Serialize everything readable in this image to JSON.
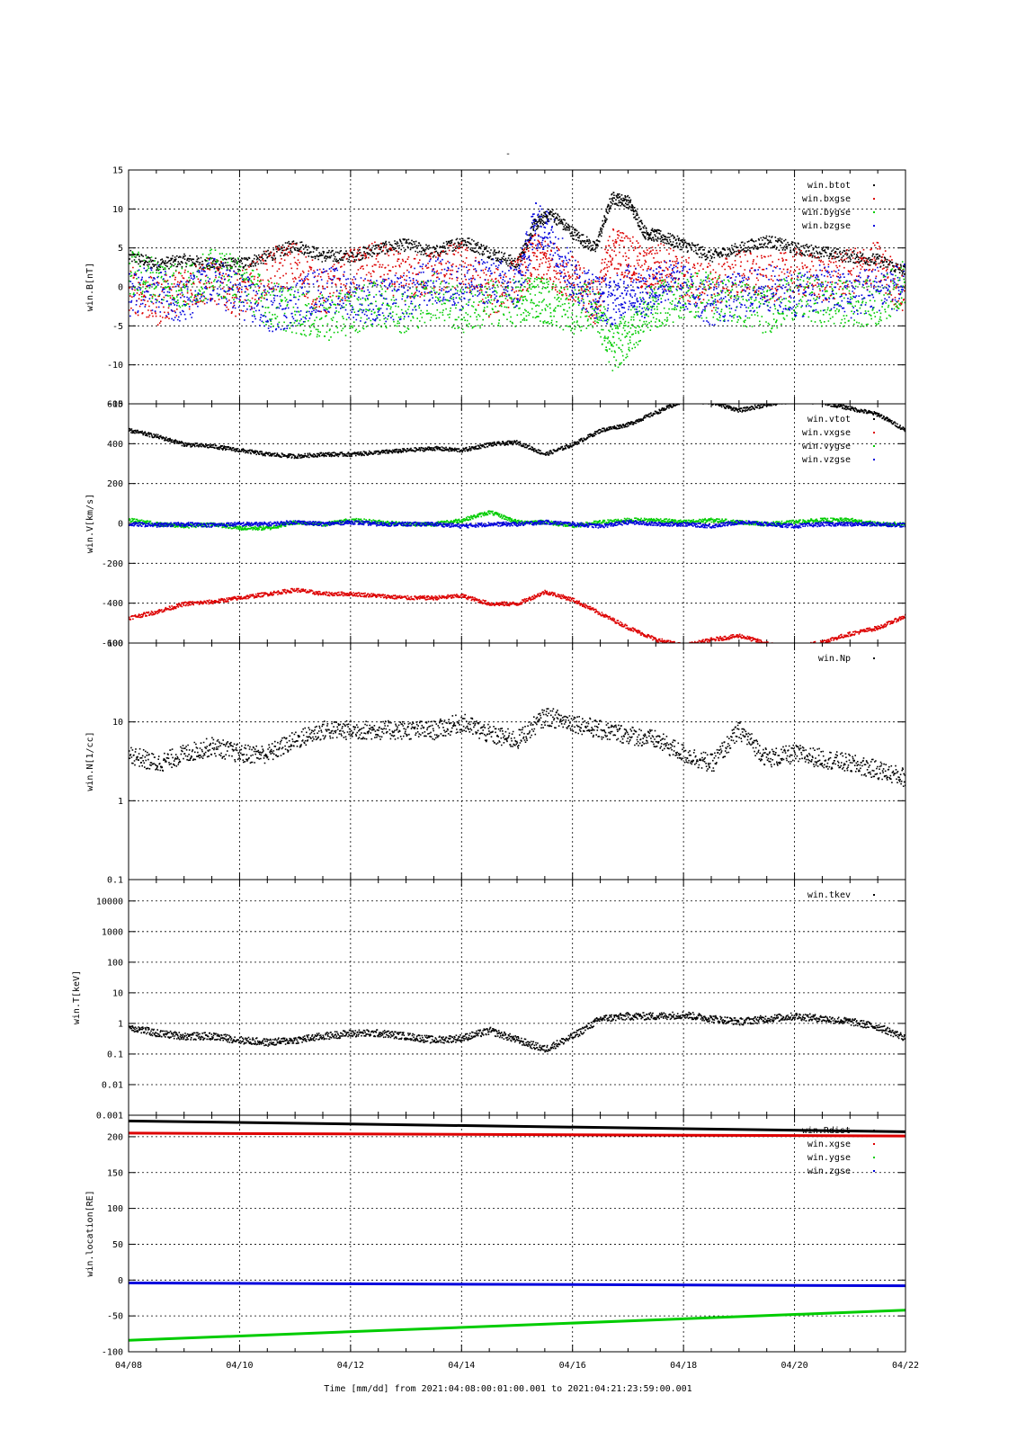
{
  "figure": {
    "title": "-",
    "xlabel": "Time [mm/dd]  from 2021:04:08:00:01:00.001  to  2021:04:21:23:59:00.001",
    "x_tick_labels": [
      "04/08",
      "04/10",
      "04/12",
      "04/14",
      "04/16",
      "04/18",
      "04/20",
      "04/22"
    ]
  },
  "colors": {
    "black": "#000000",
    "red": "#dd0000",
    "green": "#00cc00",
    "blue": "#0000dd"
  },
  "chart_data": [
    {
      "type": "scatter",
      "ylabel": "win.B[nT]",
      "ylim": [
        -15,
        15
      ],
      "yscale": "linear",
      "y_tick_labels": [
        "15",
        "10",
        "5",
        "0",
        "-5",
        "-10",
        "-15"
      ],
      "x_unit": "day of April 2021",
      "xlim": [
        8,
        22
      ],
      "grid": true,
      "legend_placement": "top-right",
      "series": [
        {
          "name": "win.btot",
          "color": "black",
          "x": [
            8,
            8.5,
            9,
            9.5,
            10,
            10.5,
            11,
            11.5,
            12,
            12.5,
            13,
            13.5,
            14,
            14.5,
            15,
            15.3,
            15.6,
            16,
            16.4,
            16.7,
            17,
            17.3,
            17.6,
            18,
            18.5,
            19,
            19.5,
            20,
            20.5,
            21,
            21.5,
            22
          ],
          "values": [
            4,
            3,
            3.5,
            3,
            3,
            4,
            5.5,
            4,
            4,
            5,
            5.5,
            4.5,
            6,
            4.5,
            3,
            8,
            9.5,
            7,
            5,
            11.5,
            11,
            7,
            6.5,
            5.5,
            4,
            5,
            6,
            5,
            4.5,
            4,
            3.5,
            2
          ]
        },
        {
          "name": "win.bxgse",
          "color": "red",
          "x": [
            8,
            8.5,
            9,
            9.5,
            10,
            10.5,
            11,
            11.5,
            12,
            12.5,
            13,
            13.5,
            14,
            14.5,
            15,
            15.3,
            15.6,
            16,
            16.4,
            16.7,
            17,
            17.3,
            17.6,
            18,
            18.5,
            19,
            19.5,
            20,
            20.5,
            21,
            21.5,
            22
          ],
          "values": [
            0,
            -2,
            0,
            1,
            -1,
            2,
            3,
            -1,
            2,
            3,
            1,
            2,
            3,
            -1,
            1,
            4,
            3,
            1,
            -2,
            5,
            4,
            2,
            3,
            1,
            0,
            2,
            1,
            2,
            1,
            2,
            3,
            -1
          ]
        },
        {
          "name": "win.bygse",
          "color": "green",
          "x": [
            8,
            8.5,
            9,
            9.5,
            10,
            10.5,
            11,
            11.5,
            12,
            12.5,
            13,
            13.5,
            14,
            14.5,
            15,
            15.3,
            15.6,
            16,
            16.4,
            16.7,
            17,
            17.3,
            17.6,
            18,
            18.5,
            19,
            19.5,
            20,
            20.5,
            21,
            21.5,
            22
          ],
          "values": [
            2,
            1,
            0,
            2,
            1,
            -2,
            -3,
            -4,
            -3,
            -2,
            -3,
            -1,
            -3,
            -2,
            -2,
            -1,
            -2,
            -3,
            -2,
            -8,
            -6,
            -3,
            -2,
            -1,
            -1,
            -2,
            -3,
            -1,
            -2,
            -2,
            -2,
            1
          ]
        },
        {
          "name": "win.bzgse",
          "color": "blue",
          "x": [
            8,
            8.5,
            9,
            9.5,
            10,
            10.5,
            11,
            11.5,
            12,
            12.5,
            13,
            13.5,
            14,
            14.5,
            15,
            15.3,
            15.6,
            16,
            16.4,
            16.7,
            17,
            17.3,
            17.6,
            18,
            18.5,
            19,
            19.5,
            20,
            20.5,
            21,
            21.5,
            22
          ],
          "values": [
            -1,
            0,
            -2,
            1,
            -1,
            -3,
            -2,
            0,
            -1,
            -2,
            -1,
            1,
            0,
            1,
            0,
            8,
            7,
            1,
            -1,
            -2,
            0,
            -1,
            1,
            0,
            -2,
            -1,
            0,
            -1,
            0,
            -1,
            0,
            0
          ]
        }
      ]
    },
    {
      "type": "scatter",
      "ylabel": "win.V[km/s]",
      "ylim": [
        -600,
        600
      ],
      "yscale": "linear",
      "y_tick_labels": [
        "600",
        "400",
        "200",
        "0",
        "-200",
        "-400",
        "-600"
      ],
      "x_unit": "day of April 2021",
      "xlim": [
        8,
        22
      ],
      "grid": true,
      "legend_placement": "top-right",
      "series": [
        {
          "name": "win.vtot",
          "color": "black",
          "x": [
            8,
            8.5,
            9,
            9.5,
            10,
            10.5,
            11,
            11.5,
            12,
            12.5,
            13,
            13.5,
            14,
            14.5,
            15,
            15.5,
            16,
            16.5,
            17,
            17.5,
            18,
            18.5,
            19,
            19.5,
            20,
            20.5,
            21,
            21.5,
            22
          ],
          "values": [
            470,
            440,
            400,
            390,
            370,
            350,
            340,
            350,
            350,
            360,
            370,
            380,
            370,
            400,
            410,
            350,
            400,
            470,
            500,
            560,
            620,
            610,
            570,
            600,
            620,
            610,
            580,
            550,
            470
          ]
        },
        {
          "name": "win.vxgse",
          "color": "red",
          "x": [
            8,
            8.5,
            9,
            9.5,
            10,
            10.5,
            11,
            11.5,
            12,
            12.5,
            13,
            13.5,
            14,
            14.5,
            15,
            15.5,
            16,
            16.5,
            17,
            17.5,
            18,
            18.5,
            19,
            19.5,
            20,
            20.5,
            21,
            21.5,
            22
          ],
          "values": [
            -470,
            -440,
            -400,
            -390,
            -370,
            -350,
            -330,
            -350,
            -350,
            -360,
            -370,
            -370,
            -360,
            -400,
            -400,
            -340,
            -380,
            -450,
            -520,
            -580,
            -610,
            -580,
            -560,
            -600,
            -620,
            -590,
            -550,
            -520,
            -460
          ]
        },
        {
          "name": "win.vygse",
          "color": "green",
          "x": [
            8,
            8.5,
            9,
            9.5,
            10,
            10.5,
            11,
            11.5,
            12,
            12.5,
            13,
            13.5,
            14,
            14.5,
            15,
            15.5,
            16,
            16.5,
            17,
            17.5,
            18,
            18.5,
            19,
            19.5,
            20,
            20.5,
            21,
            21.5,
            22
          ],
          "values": [
            20,
            0,
            -10,
            0,
            -20,
            -20,
            10,
            0,
            20,
            10,
            0,
            0,
            20,
            60,
            10,
            10,
            -10,
            10,
            20,
            20,
            10,
            20,
            10,
            0,
            10,
            20,
            20,
            0,
            0
          ]
        },
        {
          "name": "win.vzgse",
          "color": "blue",
          "x": [
            8,
            8.5,
            9,
            9.5,
            10,
            10.5,
            11,
            11.5,
            12,
            12.5,
            13,
            13.5,
            14,
            14.5,
            15,
            15.5,
            16,
            16.5,
            17,
            17.5,
            18,
            18.5,
            19,
            19.5,
            20,
            20.5,
            21,
            21.5,
            22
          ],
          "values": [
            0,
            -5,
            0,
            -5,
            0,
            0,
            10,
            0,
            10,
            0,
            0,
            0,
            -10,
            0,
            0,
            10,
            0,
            -10,
            10,
            0,
            0,
            -10,
            10,
            0,
            -10,
            0,
            0,
            0,
            -5
          ]
        }
      ]
    },
    {
      "type": "scatter",
      "ylabel": "win.N[1/cc]",
      "ylim": [
        0.1,
        100
      ],
      "yscale": "log",
      "y_tick_labels": [
        "100",
        "10",
        "1",
        "0.1"
      ],
      "x_unit": "day of April 2021",
      "xlim": [
        8,
        22
      ],
      "grid": true,
      "legend_placement": "top-right",
      "series": [
        {
          "name": "win.Np",
          "color": "black",
          "x": [
            8,
            8.5,
            9,
            9.5,
            10,
            10.5,
            11,
            11.5,
            12,
            12.5,
            13,
            13.5,
            14,
            14.5,
            15,
            15.5,
            16,
            16.5,
            17,
            17.5,
            18,
            18.5,
            19,
            19.5,
            20,
            20.5,
            21,
            21.5,
            22
          ],
          "values": [
            4,
            3,
            4,
            5,
            4,
            4,
            6,
            8,
            8,
            8,
            8,
            8,
            10,
            7,
            6,
            12,
            10,
            8,
            7,
            6,
            4,
            3,
            8,
            3.5,
            4,
            3.5,
            3,
            2.5,
            2
          ]
        }
      ]
    },
    {
      "type": "scatter",
      "ylabel": "win.T[keV]",
      "ylim": [
        0.001,
        50000
      ],
      "yscale": "log",
      "y_tick_labels": [
        "10000",
        "1000",
        "100",
        "10",
        "1",
        "0.1",
        "0.01",
        "0.001"
      ],
      "x_unit": "day of April 2021",
      "xlim": [
        8,
        22
      ],
      "grid": true,
      "legend_placement": "top-right",
      "series": [
        {
          "name": "win.tkev",
          "color": "black",
          "x": [
            8,
            8.5,
            9,
            9.5,
            10,
            10.5,
            11,
            11.5,
            12,
            12.5,
            13,
            13.5,
            14,
            14.5,
            15,
            15.5,
            16,
            16.5,
            17,
            17.5,
            18,
            18.5,
            19,
            19.5,
            20,
            20.5,
            21,
            21.5,
            22
          ],
          "values": [
            0.8,
            0.5,
            0.4,
            0.4,
            0.3,
            0.25,
            0.3,
            0.4,
            0.5,
            0.5,
            0.4,
            0.3,
            0.35,
            0.6,
            0.3,
            0.15,
            0.4,
            1.5,
            1.8,
            1.8,
            2,
            1.5,
            1.2,
            1.5,
            1.8,
            1.5,
            1.2,
            0.8,
            0.35
          ]
        }
      ]
    },
    {
      "type": "line",
      "ylabel": "win.location[RE]",
      "ylim": [
        -100,
        230
      ],
      "yscale": "linear",
      "y_tick_labels": [
        "200",
        "150",
        "100",
        "50",
        "0",
        "-50",
        "-100"
      ],
      "x_unit": "day of April 2021",
      "xlim": [
        8,
        22
      ],
      "grid": true,
      "legend_placement": "top-right",
      "series": [
        {
          "name": "win.Rdist",
          "color": "black",
          "x": [
            8,
            22
          ],
          "values": [
            222,
            207
          ]
        },
        {
          "name": "win.xgse",
          "color": "red",
          "x": [
            8,
            22
          ],
          "values": [
            205,
            201
          ]
        },
        {
          "name": "win.ygse",
          "color": "green",
          "x": [
            8,
            22
          ],
          "values": [
            -84,
            -42
          ]
        },
        {
          "name": "win.zgse",
          "color": "blue",
          "x": [
            8,
            22
          ],
          "values": [
            -4,
            -8
          ]
        }
      ]
    }
  ]
}
